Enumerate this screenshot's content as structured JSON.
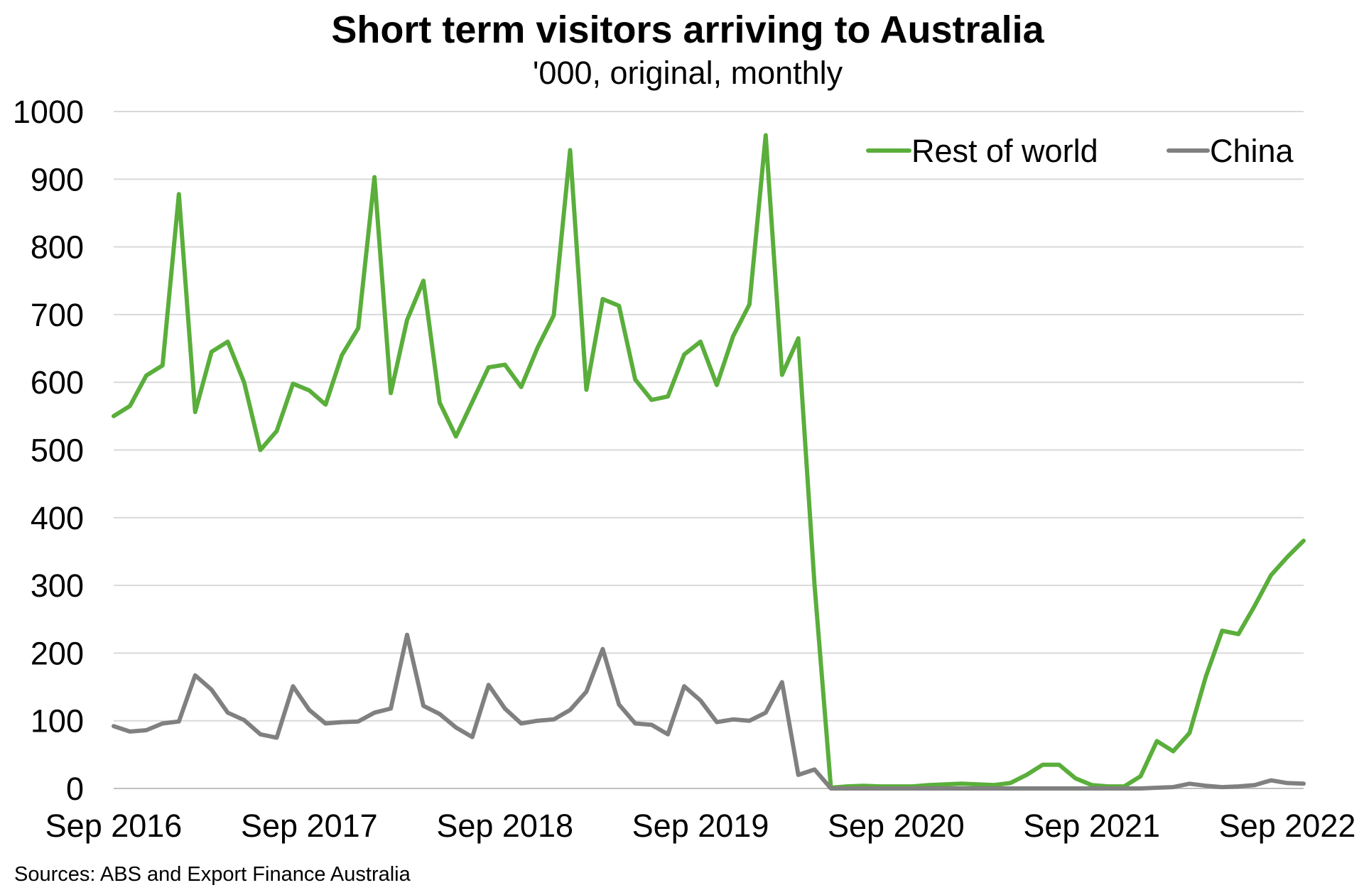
{
  "chart_data": {
    "type": "line",
    "title": "Short term visitors arriving to Australia",
    "subtitle": "'000, original, monthly",
    "source": "Sources: ABS and Export Finance Australia",
    "x_tick_labels": [
      "Sep 2016",
      "Sep 2017",
      "Sep 2018",
      "Sep 2019",
      "Sep 2020",
      "Sep 2021",
      "Sep 2022"
    ],
    "y_tick_labels": [
      "0",
      "100",
      "200",
      "300",
      "400",
      "500",
      "600",
      "700",
      "800",
      "900",
      "1000"
    ],
    "ylim": [
      0,
      1000
    ],
    "x_start": "Sep 2016",
    "x_end": "Sep 2022",
    "frequency": "monthly",
    "grid": true,
    "legend_position": "top-right",
    "series": [
      {
        "name": "Rest of world",
        "color": "#5aae3b",
        "values": [
          550,
          565,
          610,
          625,
          878,
          556,
          645,
          660,
          600,
          500,
          528,
          598,
          588,
          567,
          640,
          680,
          903,
          584,
          692,
          750,
          570,
          520,
          571,
          622,
          626,
          593,
          651,
          699,
          943,
          589,
          723,
          713,
          604,
          574,
          579,
          641,
          660,
          596,
          668,
          715,
          965,
          611,
          665,
          300,
          1,
          3,
          4,
          3,
          3,
          3,
          5,
          6,
          7,
          6,
          5,
          8,
          20,
          35,
          35,
          15,
          5,
          3,
          3,
          18,
          70,
          55,
          82,
          165,
          233,
          228,
          270,
          315,
          342,
          366
        ]
      },
      {
        "name": "China",
        "color": "#808080",
        "values": [
          92,
          84,
          86,
          96,
          99,
          167,
          146,
          112,
          101,
          80,
          75,
          151,
          116,
          96,
          98,
          99,
          112,
          118,
          227,
          122,
          110,
          90,
          76,
          153,
          118,
          96,
          100,
          102,
          116,
          143,
          206,
          124,
          96,
          94,
          80,
          151,
          130,
          98,
          102,
          100,
          112,
          157,
          20,
          28,
          0,
          0,
          0,
          0,
          0,
          0,
          0,
          0,
          0,
          0,
          0,
          0,
          0,
          0,
          0,
          0,
          0,
          0,
          0,
          0,
          1,
          2,
          7,
          4,
          2,
          3,
          5,
          12,
          8,
          7
        ]
      }
    ]
  }
}
